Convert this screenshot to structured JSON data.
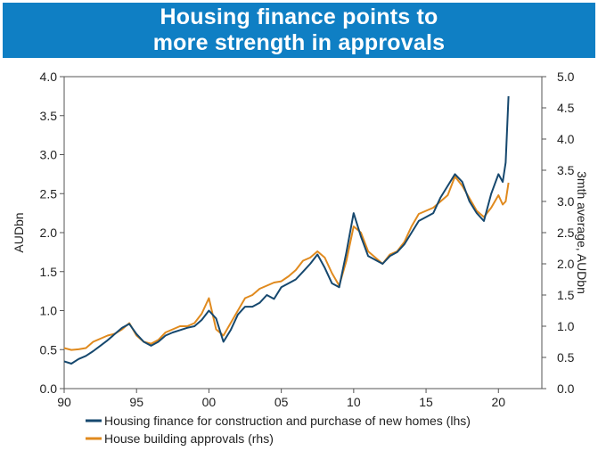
{
  "title": {
    "line1": "Housing finance points to",
    "line2": "more strength in approvals"
  },
  "colors": {
    "banner": "#0f7fc4",
    "finance": "#16486e",
    "approvals": "#e08a1e"
  },
  "chart_data": {
    "type": "line",
    "title": "Housing finance points to more strength in approvals",
    "x_ticks": [
      "90",
      "95",
      "00",
      "05",
      "10",
      "15",
      "20"
    ],
    "x_tick_years": [
      1990,
      1995,
      2000,
      2005,
      2010,
      2015,
      2020
    ],
    "xlim": [
      1990,
      2023
    ],
    "ylabel_left": "AUDbn",
    "ylabel_right": "3mth average, AUDbn",
    "ylim_left": [
      0,
      4.0
    ],
    "ylim_right": [
      0,
      5.0
    ],
    "yticks_left": [
      "0.0",
      "0.5",
      "1.0",
      "1.5",
      "2.0",
      "2.5",
      "3.0",
      "3.5",
      "4.0"
    ],
    "yticks_right": [
      "0.0",
      "0.5",
      "1.0",
      "1.5",
      "2.0",
      "2.5",
      "3.0",
      "3.5",
      "4.0",
      "4.5",
      "5.0"
    ],
    "legend_position": "bottom",
    "grid": false,
    "series": [
      {
        "name": "Housing finance for construction and purchase of new homes (lhs)",
        "axis": "left",
        "color": "#16486e",
        "x": [
          1990.0,
          1990.5,
          1991.0,
          1991.5,
          1992.0,
          1992.5,
          1993.0,
          1993.5,
          1994.0,
          1994.5,
          1995.0,
          1995.5,
          1996.0,
          1996.5,
          1997.0,
          1997.5,
          1998.0,
          1998.5,
          1999.0,
          1999.5,
          2000.0,
          2000.5,
          2001.0,
          2001.5,
          2002.0,
          2002.5,
          2003.0,
          2003.5,
          2004.0,
          2004.5,
          2005.0,
          2005.5,
          2006.0,
          2006.5,
          2007.0,
          2007.5,
          2008.0,
          2008.5,
          2009.0,
          2009.5,
          2010.0,
          2010.5,
          2011.0,
          2011.5,
          2012.0,
          2012.5,
          2013.0,
          2013.5,
          2014.0,
          2014.5,
          2015.0,
          2015.5,
          2016.0,
          2016.5,
          2017.0,
          2017.5,
          2018.0,
          2018.5,
          2019.0,
          2019.5,
          2020.0,
          2020.3,
          2020.5,
          2020.7
        ],
        "values": [
          0.35,
          0.32,
          0.38,
          0.42,
          0.48,
          0.55,
          0.62,
          0.7,
          0.78,
          0.83,
          0.7,
          0.6,
          0.55,
          0.6,
          0.68,
          0.72,
          0.75,
          0.78,
          0.8,
          0.88,
          1.0,
          0.9,
          0.6,
          0.75,
          0.95,
          1.05,
          1.05,
          1.1,
          1.2,
          1.15,
          1.3,
          1.35,
          1.4,
          1.5,
          1.6,
          1.72,
          1.55,
          1.35,
          1.3,
          1.75,
          2.25,
          1.95,
          1.7,
          1.65,
          1.6,
          1.7,
          1.75,
          1.85,
          2.0,
          2.15,
          2.2,
          2.25,
          2.45,
          2.6,
          2.75,
          2.65,
          2.4,
          2.25,
          2.15,
          2.5,
          2.75,
          2.65,
          2.9,
          3.75
        ]
      },
      {
        "name": "House building approvals (rhs)",
        "axis": "right",
        "color": "#e08a1e",
        "x": [
          1990.0,
          1990.5,
          1991.0,
          1991.5,
          1992.0,
          1992.5,
          1993.0,
          1993.5,
          1994.0,
          1994.5,
          1995.0,
          1995.5,
          1996.0,
          1996.5,
          1997.0,
          1997.5,
          1998.0,
          1998.5,
          1999.0,
          1999.5,
          2000.0,
          2000.5,
          2001.0,
          2001.5,
          2002.0,
          2002.5,
          2003.0,
          2003.5,
          2004.0,
          2004.5,
          2005.0,
          2005.5,
          2006.0,
          2006.5,
          2007.0,
          2007.5,
          2008.0,
          2008.5,
          2009.0,
          2009.5,
          2010.0,
          2010.5,
          2011.0,
          2011.5,
          2012.0,
          2012.5,
          2013.0,
          2013.5,
          2014.0,
          2014.5,
          2015.0,
          2015.5,
          2016.0,
          2016.5,
          2017.0,
          2017.5,
          2018.0,
          2018.5,
          2019.0,
          2019.5,
          2020.0,
          2020.3,
          2020.5,
          2020.7
        ],
        "values": [
          0.65,
          0.62,
          0.63,
          0.65,
          0.75,
          0.8,
          0.85,
          0.88,
          0.95,
          1.05,
          0.85,
          0.75,
          0.72,
          0.78,
          0.9,
          0.95,
          1.0,
          1.0,
          1.05,
          1.2,
          1.45,
          0.95,
          0.85,
          1.05,
          1.25,
          1.45,
          1.5,
          1.6,
          1.65,
          1.7,
          1.72,
          1.8,
          1.9,
          2.05,
          2.1,
          2.2,
          2.1,
          1.85,
          1.65,
          2.05,
          2.6,
          2.5,
          2.2,
          2.1,
          2.0,
          2.15,
          2.2,
          2.35,
          2.6,
          2.8,
          2.85,
          2.9,
          3.0,
          3.1,
          3.4,
          3.25,
          3.05,
          2.85,
          2.75,
          2.9,
          3.1,
          2.95,
          3.0,
          3.3
        ]
      }
    ]
  }
}
